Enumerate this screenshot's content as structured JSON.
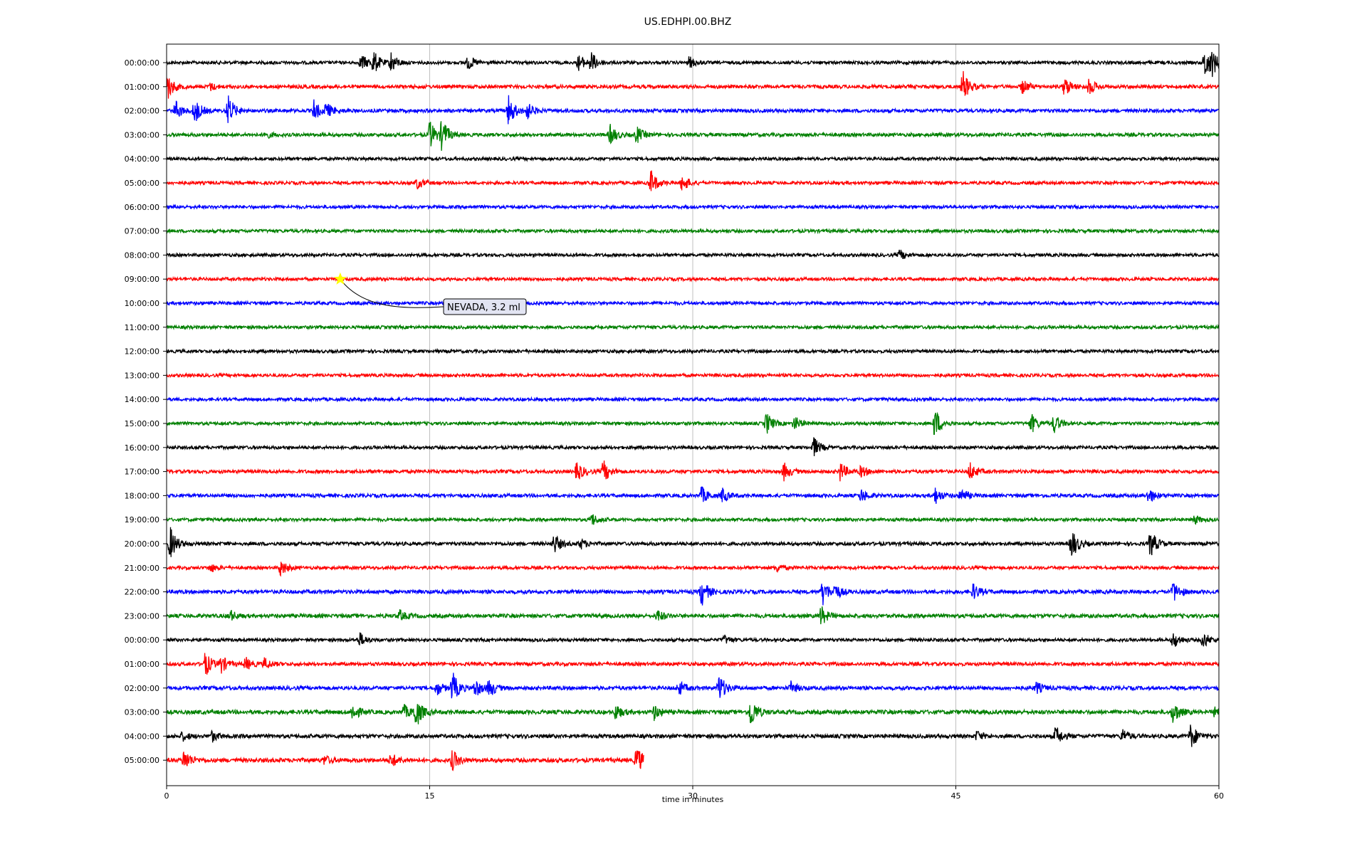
{
  "chart_data": {
    "type": "line",
    "title": "US.EDHPI.00.BHZ",
    "xlabel": "time in minutes",
    "ylabel": "",
    "xlim": [
      0,
      60
    ],
    "x_ticks": [
      0,
      15,
      30,
      45,
      60
    ],
    "grid": "vertical lines at 15, 30, 45",
    "colors": [
      "#000000",
      "#ff0000",
      "#0000ff",
      "#008000"
    ],
    "rows": [
      {
        "label": "00:00:00",
        "color": "#000000",
        "noise": 1.0,
        "bursts": [
          {
            "t": 11.1,
            "a": 12
          },
          {
            "t": 11.8,
            "a": 16
          },
          {
            "t": 12.8,
            "a": 14
          },
          {
            "t": 17.2,
            "a": 10
          },
          {
            "t": 23.5,
            "a": 11
          },
          {
            "t": 24.2,
            "a": 14
          },
          {
            "t": 29.8,
            "a": 8
          },
          {
            "t": 59.2,
            "a": 22
          },
          {
            "t": 59.6,
            "a": 14
          }
        ]
      },
      {
        "label": "01:00:00",
        "color": "#ff0000",
        "noise": 1.1,
        "bursts": [
          {
            "t": 0.05,
            "a": 18
          },
          {
            "t": 2.5,
            "a": 5
          },
          {
            "t": 45.4,
            "a": 22
          },
          {
            "t": 48.8,
            "a": 10
          },
          {
            "t": 51.2,
            "a": 14
          },
          {
            "t": 52.6,
            "a": 12
          }
        ]
      },
      {
        "label": "02:00:00",
        "color": "#0000ff",
        "noise": 1.1,
        "bursts": [
          {
            "t": 0.5,
            "a": 14
          },
          {
            "t": 1.6,
            "a": 18
          },
          {
            "t": 3.5,
            "a": 22
          },
          {
            "t": 8.4,
            "a": 14
          },
          {
            "t": 9.1,
            "a": 10
          },
          {
            "t": 19.5,
            "a": 22
          },
          {
            "t": 20.5,
            "a": 14
          }
        ]
      },
      {
        "label": "03:00:00",
        "color": "#008000",
        "noise": 1.1,
        "bursts": [
          {
            "t": 5.6,
            "a": 5
          },
          {
            "t": 15.0,
            "a": 20
          },
          {
            "t": 15.7,
            "a": 22
          },
          {
            "t": 25.3,
            "a": 14
          },
          {
            "t": 26.8,
            "a": 12
          }
        ]
      },
      {
        "label": "04:00:00",
        "color": "#000000",
        "noise": 1.0,
        "bursts": []
      },
      {
        "label": "05:00:00",
        "color": "#ff0000",
        "noise": 1.0,
        "bursts": [
          {
            "t": 14.3,
            "a": 8
          },
          {
            "t": 27.6,
            "a": 18
          },
          {
            "t": 29.4,
            "a": 13
          }
        ]
      },
      {
        "label": "06:00:00",
        "color": "#0000ff",
        "noise": 1.0,
        "bursts": []
      },
      {
        "label": "07:00:00",
        "color": "#008000",
        "noise": 1.0,
        "bursts": []
      },
      {
        "label": "08:00:00",
        "color": "#000000",
        "noise": 1.0,
        "bursts": [
          {
            "t": 41.8,
            "a": 7
          }
        ]
      },
      {
        "label": "09:00:00",
        "color": "#ff0000",
        "noise": 1.0,
        "bursts": []
      },
      {
        "label": "10:00:00",
        "color": "#0000ff",
        "noise": 1.0,
        "bursts": []
      },
      {
        "label": "11:00:00",
        "color": "#008000",
        "noise": 1.0,
        "bursts": []
      },
      {
        "label": "12:00:00",
        "color": "#000000",
        "noise": 1.0,
        "bursts": []
      },
      {
        "label": "13:00:00",
        "color": "#ff0000",
        "noise": 1.0,
        "bursts": []
      },
      {
        "label": "14:00:00",
        "color": "#0000ff",
        "noise": 1.0,
        "bursts": []
      },
      {
        "label": "15:00:00",
        "color": "#008000",
        "noise": 1.0,
        "bursts": [
          {
            "t": 34.2,
            "a": 16
          },
          {
            "t": 35.8,
            "a": 10
          },
          {
            "t": 43.8,
            "a": 22
          },
          {
            "t": 49.3,
            "a": 14
          },
          {
            "t": 50.6,
            "a": 14
          }
        ]
      },
      {
        "label": "16:00:00",
        "color": "#000000",
        "noise": 1.0,
        "bursts": [
          {
            "t": 36.9,
            "a": 14
          }
        ]
      },
      {
        "label": "17:00:00",
        "color": "#ff0000",
        "noise": 1.1,
        "bursts": [
          {
            "t": 23.4,
            "a": 14
          },
          {
            "t": 24.9,
            "a": 16
          },
          {
            "t": 35.2,
            "a": 12
          },
          {
            "t": 38.4,
            "a": 13
          },
          {
            "t": 39.6,
            "a": 8
          },
          {
            "t": 45.8,
            "a": 13
          }
        ]
      },
      {
        "label": "18:00:00",
        "color": "#0000ff",
        "noise": 1.1,
        "bursts": [
          {
            "t": 30.5,
            "a": 12
          },
          {
            "t": 31.7,
            "a": 10
          },
          {
            "t": 39.6,
            "a": 9
          },
          {
            "t": 43.8,
            "a": 12
          },
          {
            "t": 45.3,
            "a": 10
          },
          {
            "t": 56.0,
            "a": 11
          }
        ]
      },
      {
        "label": "19:00:00",
        "color": "#008000",
        "noise": 1.0,
        "bursts": [
          {
            "t": 24.2,
            "a": 10
          },
          {
            "t": 58.6,
            "a": 6
          }
        ]
      },
      {
        "label": "20:00:00",
        "color": "#000000",
        "noise": 1.1,
        "bursts": [
          {
            "t": 0.2,
            "a": 24
          },
          {
            "t": 22.1,
            "a": 14
          },
          {
            "t": 23.6,
            "a": 7
          },
          {
            "t": 51.6,
            "a": 22
          },
          {
            "t": 56.1,
            "a": 20
          }
        ]
      },
      {
        "label": "21:00:00",
        "color": "#ff0000",
        "noise": 1.0,
        "bursts": [
          {
            "t": 2.5,
            "a": 6
          },
          {
            "t": 6.5,
            "a": 12
          },
          {
            "t": 34.8,
            "a": 5
          }
        ]
      },
      {
        "label": "22:00:00",
        "color": "#0000ff",
        "noise": 1.2,
        "bursts": [
          {
            "t": 30.5,
            "a": 20
          },
          {
            "t": 37.4,
            "a": 18
          },
          {
            "t": 38.1,
            "a": 10
          },
          {
            "t": 46.0,
            "a": 11
          },
          {
            "t": 57.4,
            "a": 15
          }
        ]
      },
      {
        "label": "23:00:00",
        "color": "#008000",
        "noise": 1.2,
        "bursts": [
          {
            "t": 3.6,
            "a": 8
          },
          {
            "t": 13.3,
            "a": 7
          },
          {
            "t": 28.0,
            "a": 8
          },
          {
            "t": 37.3,
            "a": 14
          }
        ]
      },
      {
        "label": "00:00:00",
        "color": "#000000",
        "noise": 1.0,
        "bursts": [
          {
            "t": 11.0,
            "a": 10
          },
          {
            "t": 31.8,
            "a": 6
          },
          {
            "t": 57.4,
            "a": 12
          },
          {
            "t": 59.1,
            "a": 12
          }
        ]
      },
      {
        "label": "01:00:00",
        "color": "#ff0000",
        "noise": 1.1,
        "bursts": [
          {
            "t": 2.2,
            "a": 18
          },
          {
            "t": 3.1,
            "a": 12
          },
          {
            "t": 4.5,
            "a": 9
          },
          {
            "t": 5.6,
            "a": 8
          }
        ]
      },
      {
        "label": "02:00:00",
        "color": "#0000ff",
        "noise": 1.2,
        "bursts": [
          {
            "t": 15.4,
            "a": 10
          },
          {
            "t": 16.3,
            "a": 22
          },
          {
            "t": 17.6,
            "a": 13
          },
          {
            "t": 18.4,
            "a": 12
          },
          {
            "t": 29.2,
            "a": 10
          },
          {
            "t": 31.5,
            "a": 20
          },
          {
            "t": 35.6,
            "a": 8
          },
          {
            "t": 49.6,
            "a": 8
          }
        ]
      },
      {
        "label": "03:00:00",
        "color": "#008000",
        "noise": 1.3,
        "bursts": [
          {
            "t": 10.6,
            "a": 12
          },
          {
            "t": 13.5,
            "a": 10
          },
          {
            "t": 14.2,
            "a": 22
          },
          {
            "t": 25.6,
            "a": 11
          },
          {
            "t": 27.8,
            "a": 10
          },
          {
            "t": 33.3,
            "a": 22
          },
          {
            "t": 57.4,
            "a": 16
          },
          {
            "t": 59.8,
            "a": 9
          }
        ]
      },
      {
        "label": "04:00:00",
        "color": "#000000",
        "noise": 1.2,
        "bursts": [
          {
            "t": 0.9,
            "a": 6
          },
          {
            "t": 2.6,
            "a": 7
          },
          {
            "t": 46.2,
            "a": 7
          },
          {
            "t": 50.7,
            "a": 14
          },
          {
            "t": 54.5,
            "a": 10
          },
          {
            "t": 58.4,
            "a": 18
          }
        ]
      },
      {
        "label": "05:00:00",
        "color": "#ff0000",
        "noise": 1.3,
        "end": 27.2,
        "bursts": [
          {
            "t": 1.0,
            "a": 16
          },
          {
            "t": 9.0,
            "a": 6
          },
          {
            "t": 12.8,
            "a": 10
          },
          {
            "t": 16.3,
            "a": 14
          },
          {
            "t": 26.8,
            "a": 20
          }
        ]
      }
    ],
    "annotations": [
      {
        "text": "NEVADA, 3.2 ml",
        "row": 9,
        "t": 9.9,
        "marker": "star",
        "marker_color": "#ffff00"
      }
    ]
  }
}
